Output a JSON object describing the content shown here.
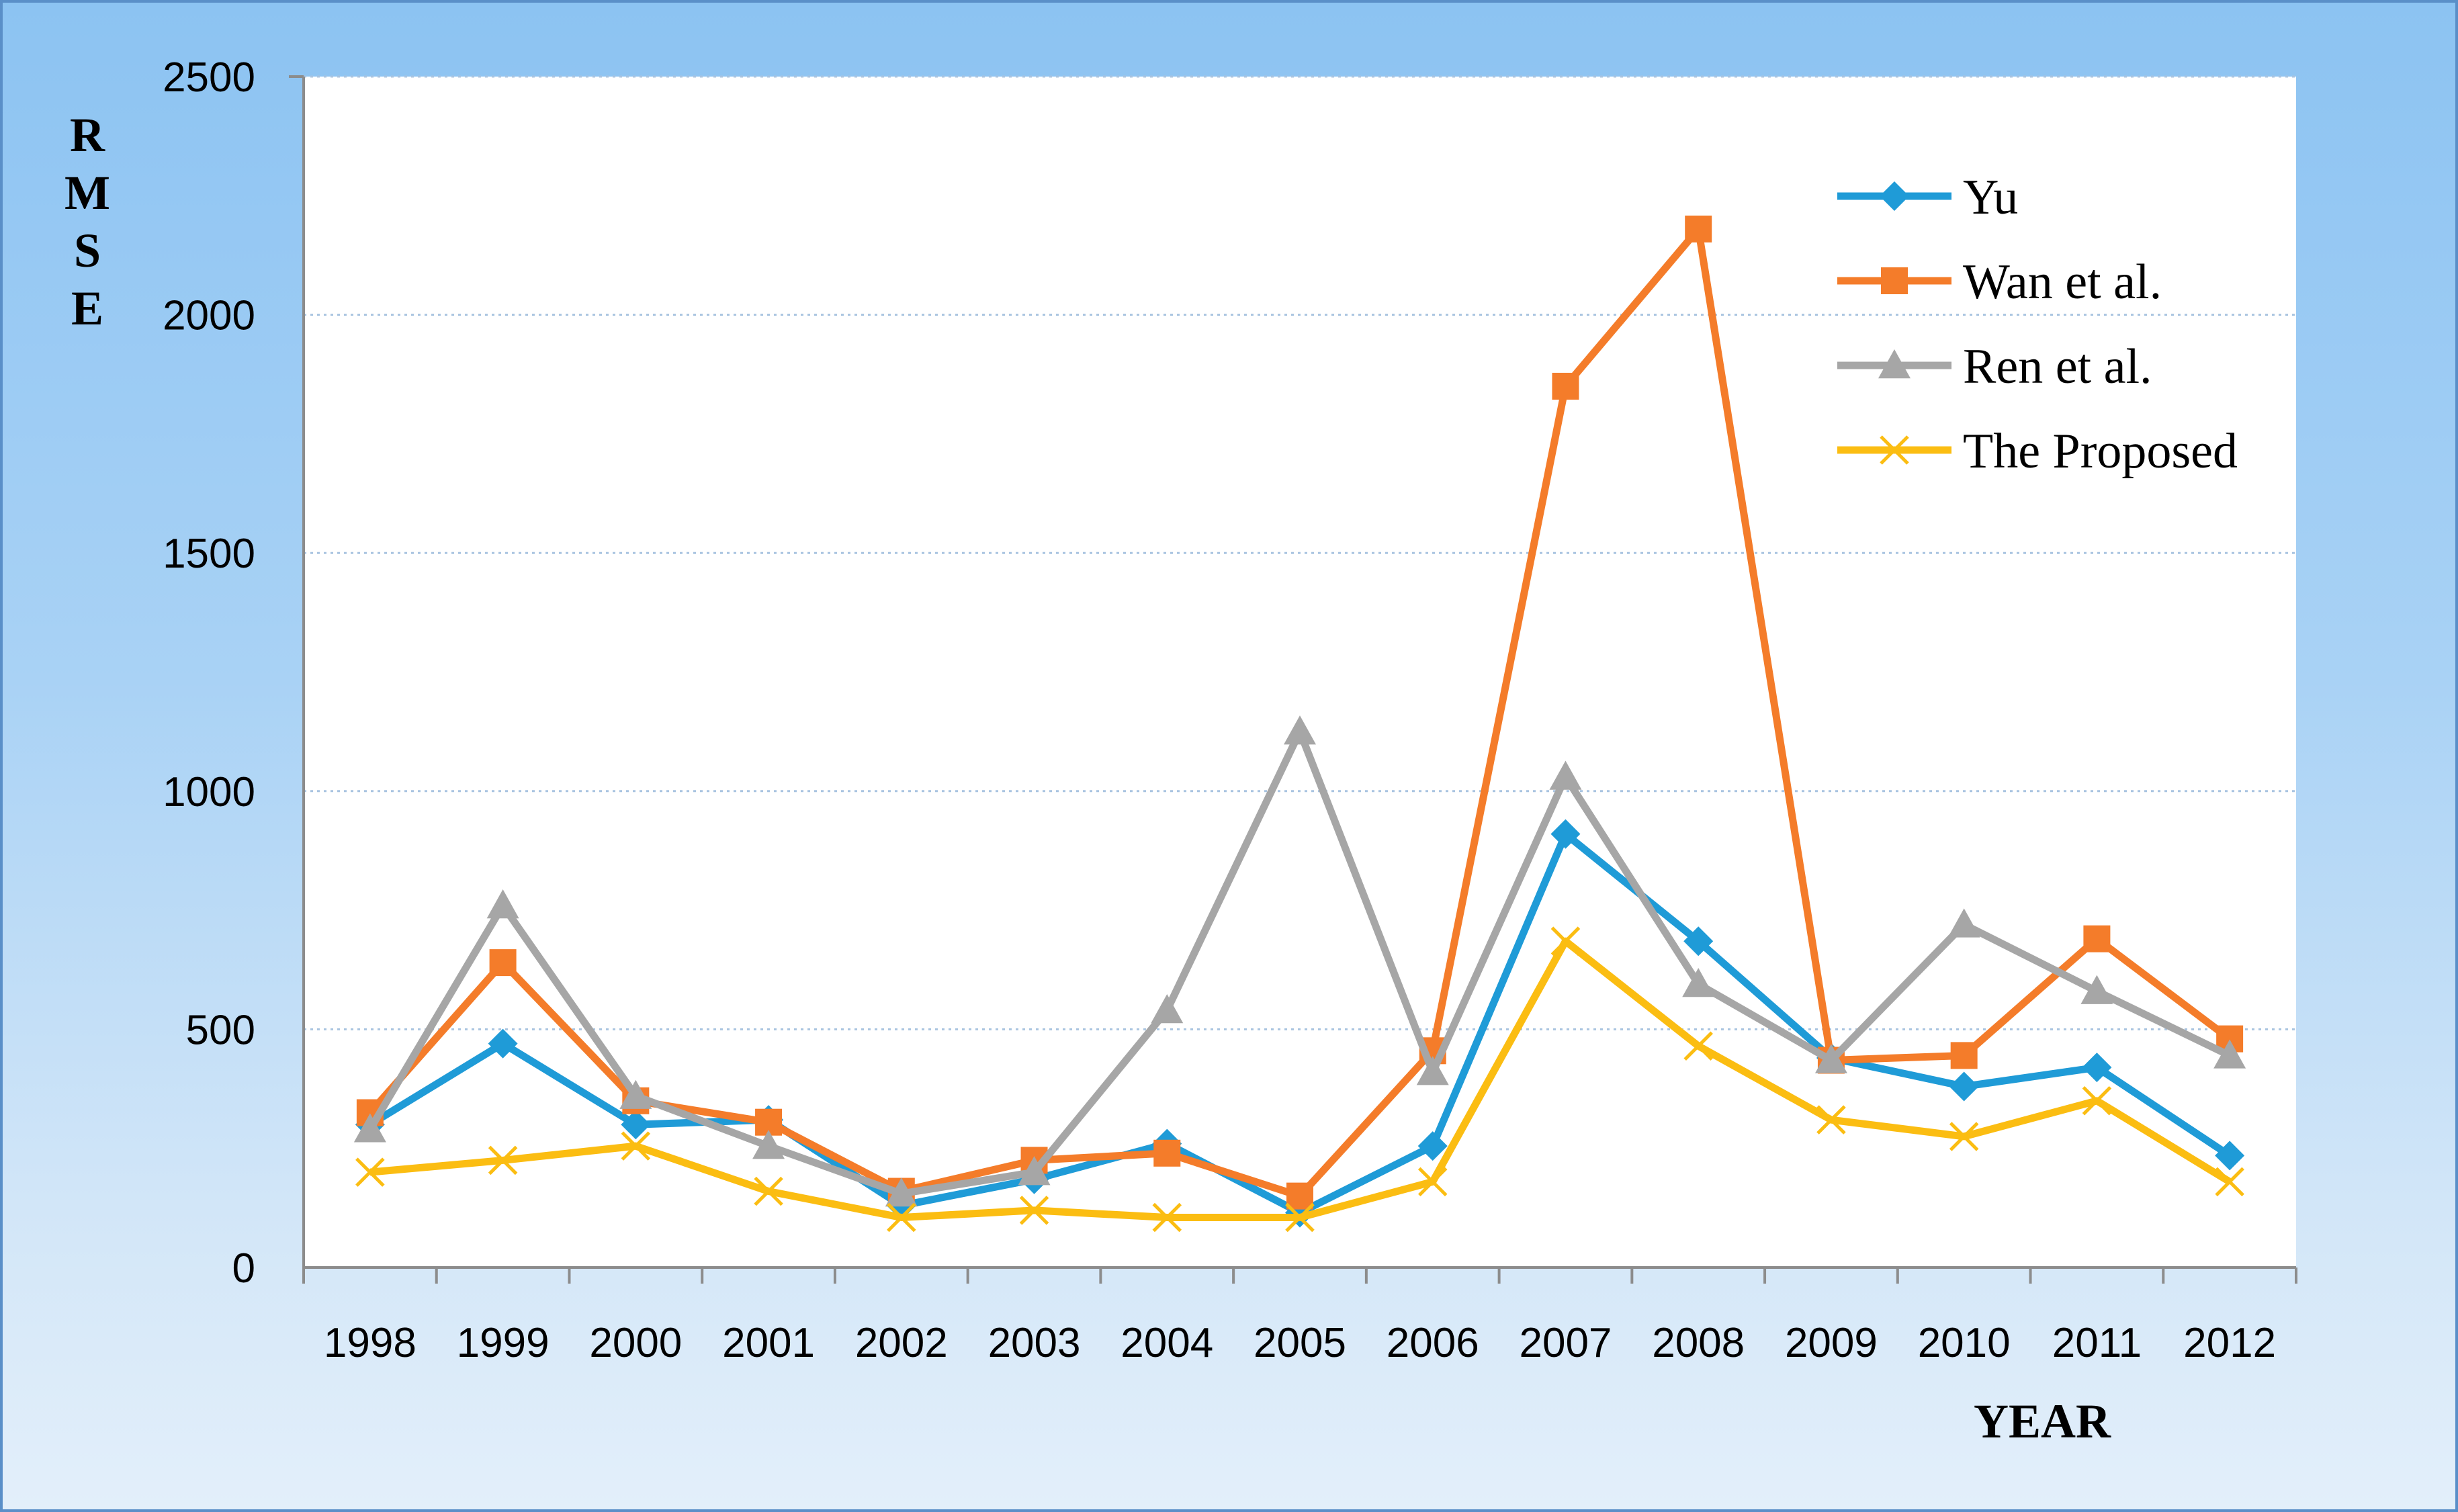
{
  "chart_data": {
    "type": "line",
    "title": "",
    "xlabel": "YEAR",
    "ylabel": "R M S E",
    "ylabel_letters": [
      "R",
      "M",
      "S",
      "E"
    ],
    "categories": [
      "1998",
      "1999",
      "2000",
      "2001",
      "2002",
      "2003",
      "2004",
      "2005",
      "2006",
      "2007",
      "2008",
      "2009",
      "2010",
      "2011",
      "2012"
    ],
    "ylim": [
      0,
      2500
    ],
    "yticks": [
      "0",
      "500",
      "1000",
      "1500",
      "2000",
      "2500"
    ],
    "grid": true,
    "legend_position": "top-right",
    "series": [
      {
        "name": "Yu",
        "color": "#1f9bd7",
        "marker": "diamond",
        "values": [
          300,
          470,
          300,
          310,
          130,
          185,
          260,
          115,
          255,
          910,
          685,
          440,
          380,
          420,
          235
        ]
      },
      {
        "name": "Wan et al.",
        "color": "#f47c2a",
        "marker": "square",
        "values": [
          325,
          640,
          350,
          305,
          160,
          225,
          240,
          150,
          455,
          1850,
          2180,
          435,
          445,
          690,
          480
        ]
      },
      {
        "name": "Ren et al.",
        "color": "#a6a6a6",
        "marker": "triangle",
        "values": [
          290,
          760,
          360,
          255,
          155,
          200,
          540,
          1125,
          410,
          1030,
          595,
          435,
          720,
          580,
          445
        ]
      },
      {
        "name": "The Proposed",
        "color": "#fbbd12",
        "marker": "cross",
        "values": [
          200,
          225,
          255,
          160,
          105,
          120,
          105,
          105,
          180,
          685,
          465,
          310,
          275,
          350,
          180
        ]
      }
    ]
  }
}
